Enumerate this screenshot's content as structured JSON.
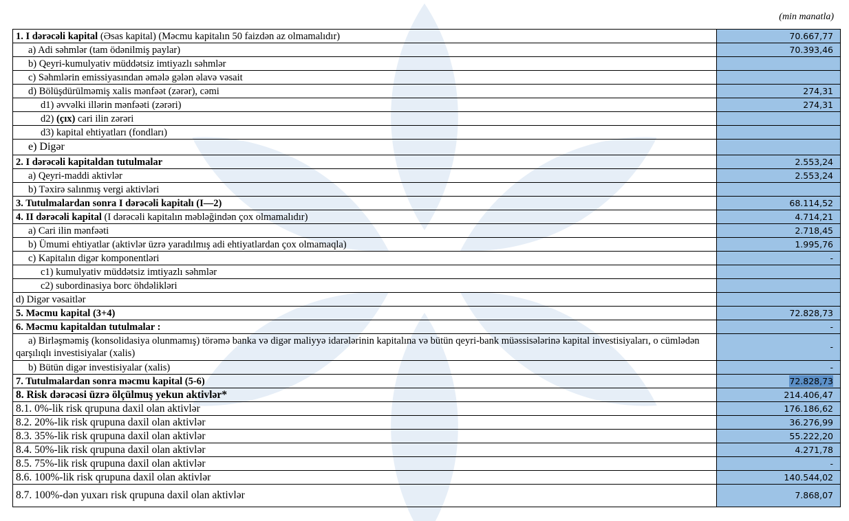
{
  "unit_label": "(min manatla)",
  "colors": {
    "value_fill": "#9dc3e6",
    "watermark": "#e3ecf6"
  },
  "rows": [
    {
      "bold": "1. I dərəcəli kapital",
      "text": " (Əsas kapital) (Məcmu kapitalın 50 faizdən  az olmamalıdır)",
      "value": "70.667,77"
    },
    {
      "bold": "",
      "text": "a) Adi səhmlər (tam ödənilmiş paylar)",
      "value": "70.393,46"
    },
    {
      "bold": "",
      "text": "b) Qeyri-kumulyativ müddətsiz imtiyazlı səhmlər",
      "value": ""
    },
    {
      "bold": "",
      "text": "c) Səhmlərin emissiyasından əmələ gələn  əlavə vəsait",
      "value": ""
    },
    {
      "bold": "",
      "text": "d)   Bölüşdürülməmiş xalis mənfəət (zərər), cəmi",
      "value": "274,31"
    },
    {
      "bold": "",
      "text": "d1) əvvəlki illərin mənfəəti (zərəri)",
      "value": "274,31"
    },
    {
      "pre": "d2) ",
      "bold": "(çıx)",
      "text": " cari ilin zərəri",
      "value": ""
    },
    {
      "bold": "",
      "text": "d3) kapital ehtiyatları (fondları)",
      "value": ""
    },
    {
      "bold": "",
      "text": "e) Digər",
      "value": ""
    },
    {
      "bold": "2. I dərəcəli kapitaldan  tutulmalar",
      "text": "",
      "value": "2.553,24"
    },
    {
      "bold": "",
      "text": "a) Qeyri-maddi aktivlər",
      "value": "2.553,24"
    },
    {
      "bold": "",
      "text": "b) Təxirə salınmış vergi aktivləri",
      "value": ""
    },
    {
      "bold": "3. Tutulmalardan  sonra I dərəcəli kapitalı (I—2)",
      "text": "",
      "value": "68.114,52"
    },
    {
      "bold": "4. II dərəcəli  kapital",
      "text": " (I dərəcəli  kapitalın  məbləğindən çox olmamalıdır)",
      "value": "4.714,21"
    },
    {
      "bold": "",
      "text": "a) Cari ilin mənfəəti",
      "value": "2.718,45"
    },
    {
      "bold": "",
      "text": "b) Ümumi ehtiyatlar (aktivlər üzrə yaradılmış adi ehtiyatlardan çox olmamaqla)",
      "value": "1.995,76"
    },
    {
      "bold": "",
      "text": "c)  Kapitalın digər komponentləri",
      "value": "-"
    },
    {
      "bold": "",
      "text": "c1) kumulyativ müddətsiz imtiyazlı səhmlər",
      "value": ""
    },
    {
      "bold": "",
      "text": "c2) subordinasiya borc öhdəlikləri",
      "value": ""
    },
    {
      "bold": "",
      "text": "d) Digər vəsaitlər",
      "value": ""
    },
    {
      "bold": "5. Məcmu kapital (3+4)",
      "text": "",
      "value": "72.828,73"
    },
    {
      "bold": "6. Məcmu kapitaldan tutulmalar :",
      "text": "",
      "value": "-"
    },
    {
      "bold": "",
      "text": "a)  Birləşməmiş (konsolidasiya olunmamış) törəmə banka və digər maliyyə idarələrinin kapitalına və bütün qeyri-bank müəssisələrinə kapital investisiyaları, o cümlədən qarşılıqlı investisiyalar (xalis)",
      "value": "-"
    },
    {
      "bold": "",
      "text": "b)   Bütün digər investisiyalar (xalis)",
      "value": "-"
    },
    {
      "bold": "7. Tutulmalardan  sonra məcmu kapital (5-6)",
      "text": "",
      "value": "72.828,73"
    },
    {
      "bold": "8. Risk dərəcəsi üzrə ölçülmuş  yekun aktivlər*",
      "text": "",
      "value": "214.406,47"
    },
    {
      "bold": "",
      "text": "8.1. 0%-lik risk qrupuna daxil olan aktivlər",
      "value": "176.186,62"
    },
    {
      "bold": "",
      "text": "8.2. 20%-lik risk qrupuna daxil olan aktivlər",
      "value": "36.276,99"
    },
    {
      "bold": "",
      "text": "8.3. 35%-lik risk qrupuna daxil olan aktivlər",
      "value": "55.222,20"
    },
    {
      "bold": "",
      "text": "8.4. 50%-lik risk qrupuna daxil olan aktivlər",
      "value": "4.271,78"
    },
    {
      "bold": "",
      "text": "8.5. 75%-lik risk qrupuna daxil olan aktivlər",
      "value": "-"
    },
    {
      "bold": "",
      "text": "8.6. 100%-lik risk qrupuna daxil olan aktivlər",
      "value": "140.544,02"
    },
    {
      "bold": "",
      "text": "8.7. 100%-dən yuxarı risk qrupuna daxil olan aktivlər",
      "value": "7.868,07"
    }
  ]
}
